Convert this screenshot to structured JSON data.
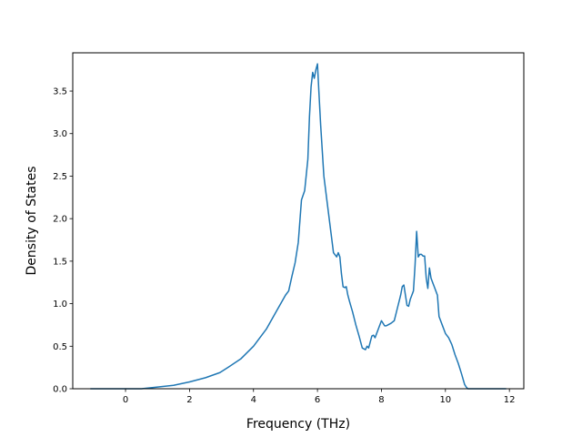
{
  "chart_data": {
    "type": "line",
    "title": "",
    "xlabel": "Frequency (THz)",
    "ylabel": "Density of States",
    "xlim": [
      -1.65,
      12.45
    ],
    "ylim": [
      0,
      3.95
    ],
    "xticks": [
      0,
      2,
      4,
      6,
      8,
      10,
      12
    ],
    "yticks": [
      0.0,
      0.5,
      1.0,
      1.5,
      2.0,
      2.5,
      3.0,
      3.5
    ],
    "xtick_labels": [
      "0",
      "2",
      "4",
      "6",
      "8",
      "10",
      "12"
    ],
    "ytick_labels": [
      "0.0",
      "0.5",
      "1.0",
      "1.5",
      "2.0",
      "2.5",
      "3.0",
      "3.5"
    ],
    "grid": false,
    "legend": "none",
    "line_color": "#1f77b4",
    "series": [
      {
        "x": [
          -1.1,
          -0.5,
          0.0,
          0.5,
          1.0,
          1.5,
          2.0,
          2.5,
          2.8,
          2.95,
          3.2,
          3.6,
          4.0,
          4.4,
          4.7,
          5.0,
          5.1,
          5.2,
          5.3,
          5.4,
          5.5,
          5.6,
          5.7,
          5.75,
          5.8,
          5.85,
          5.9,
          5.95,
          6.0,
          6.05,
          6.1,
          6.2,
          6.3,
          6.4,
          6.5,
          6.6,
          6.65,
          6.7,
          6.75,
          6.8,
          6.85,
          6.9,
          6.95,
          7.0,
          7.1,
          7.2,
          7.3,
          7.4,
          7.5,
          7.55,
          7.6,
          7.7,
          7.75,
          7.8,
          7.9,
          8.0,
          8.1,
          8.15,
          8.2,
          8.3,
          8.4,
          8.5,
          8.6,
          8.65,
          8.7,
          8.75,
          8.8,
          8.85,
          8.9,
          8.95,
          9.0,
          9.05,
          9.1,
          9.15,
          9.2,
          9.25,
          9.3,
          9.35,
          9.4,
          9.45,
          9.5,
          9.55,
          9.6,
          9.65,
          9.7,
          9.75,
          9.8,
          9.9,
          9.95,
          10.0,
          10.1,
          10.2,
          10.3,
          10.4,
          10.5,
          10.6,
          10.65,
          10.7,
          10.8,
          11.0,
          11.5,
          11.9
        ],
        "y": [
          0.0,
          0.0,
          0.0,
          0.0,
          0.02,
          0.04,
          0.08,
          0.13,
          0.17,
          0.19,
          0.25,
          0.35,
          0.5,
          0.7,
          0.9,
          1.1,
          1.15,
          1.32,
          1.48,
          1.72,
          2.22,
          2.33,
          2.7,
          3.2,
          3.55,
          3.72,
          3.65,
          3.75,
          3.82,
          3.45,
          3.1,
          2.5,
          2.2,
          1.9,
          1.6,
          1.55,
          1.6,
          1.55,
          1.35,
          1.2,
          1.19,
          1.2,
          1.1,
          1.03,
          0.9,
          0.75,
          0.62,
          0.48,
          0.46,
          0.5,
          0.48,
          0.62,
          0.63,
          0.6,
          0.7,
          0.8,
          0.74,
          0.74,
          0.75,
          0.77,
          0.8,
          0.95,
          1.1,
          1.2,
          1.22,
          1.1,
          0.98,
          0.97,
          1.05,
          1.1,
          1.15,
          1.45,
          1.85,
          1.55,
          1.58,
          1.58,
          1.56,
          1.56,
          1.3,
          1.18,
          1.42,
          1.3,
          1.25,
          1.2,
          1.15,
          1.1,
          0.85,
          0.75,
          0.7,
          0.65,
          0.6,
          0.52,
          0.4,
          0.3,
          0.18,
          0.05,
          0.02,
          0.0,
          0.0,
          0.0,
          0.0,
          0.0
        ]
      }
    ]
  }
}
